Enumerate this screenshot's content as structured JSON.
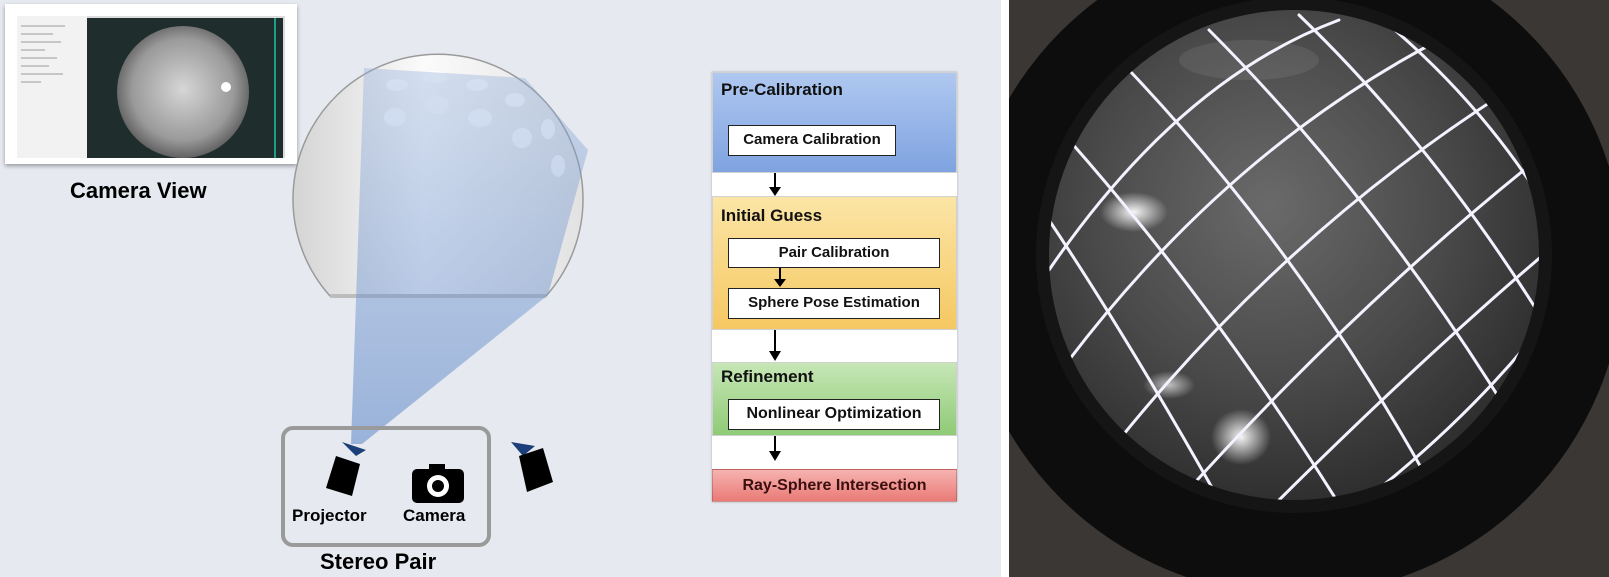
{
  "camera_view": {
    "label": "Camera View"
  },
  "stereo_pair": {
    "label": "Stereo Pair",
    "projector_label": "Projector",
    "camera_label": "Camera"
  },
  "pipeline": {
    "sections": [
      {
        "title": "Pre-Calibration",
        "color": "#7fa3e0",
        "steps": [
          "Camera Calibration"
        ]
      },
      {
        "title": "Initial Guess",
        "color": "#f8cf6e",
        "steps": [
          "Pair Calibration",
          "Sphere Pose Estimation"
        ]
      },
      {
        "title": "Refinement",
        "color": "#97cf7d",
        "steps": [
          "Nonlinear Optimization"
        ]
      }
    ],
    "final_step": {
      "label": "Ray-Sphere Intersection",
      "color": "#ef8a86"
    }
  },
  "icons": {
    "projector": "projector-icon",
    "camera": "camera-icon",
    "arrow": "arrow-down-icon"
  }
}
